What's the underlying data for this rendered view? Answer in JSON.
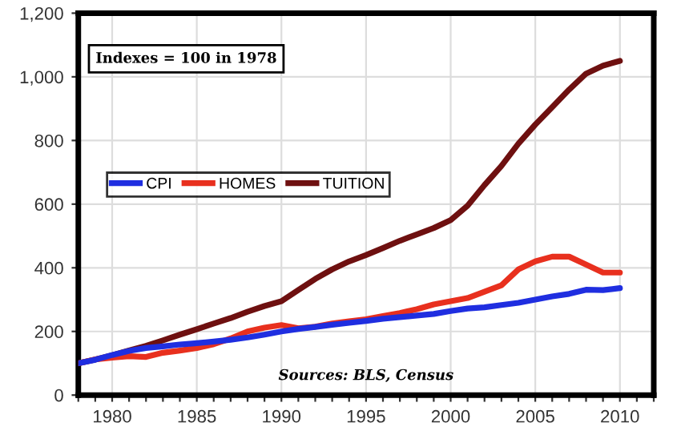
{
  "chart_data": {
    "type": "line",
    "x": [
      1978,
      1979,
      1980,
      1981,
      1982,
      1983,
      1984,
      1985,
      1986,
      1987,
      1988,
      1989,
      1990,
      1991,
      1992,
      1993,
      1994,
      1995,
      1996,
      1997,
      1998,
      1999,
      2000,
      2001,
      2002,
      2003,
      2004,
      2005,
      2006,
      2007,
      2008,
      2009,
      2010
    ],
    "series": [
      {
        "name": "CPI",
        "color": "#1f2ee0",
        "values": [
          100,
          111,
          126,
          139,
          148,
          153,
          159,
          163,
          168,
          174,
          181,
          190,
          200,
          208,
          214,
          221,
          227,
          233,
          240,
          245,
          250,
          255,
          264,
          272,
          276,
          283,
          290,
          300,
          310,
          318,
          331,
          330,
          336
        ]
      },
      {
        "name": "HOMES",
        "color": "#e8301e",
        "values": [
          100,
          112,
          118,
          122,
          120,
          133,
          140,
          148,
          160,
          178,
          200,
          212,
          220,
          210,
          215,
          225,
          232,
          238,
          248,
          258,
          270,
          285,
          295,
          305,
          325,
          345,
          395,
          420,
          435,
          435,
          410,
          385,
          385
        ]
      },
      {
        "name": "TUITION",
        "color": "#6e1010",
        "values": [
          100,
          112,
          125,
          140,
          155,
          172,
          190,
          207,
          225,
          242,
          262,
          280,
          295,
          330,
          365,
          395,
          420,
          440,
          462,
          485,
          505,
          525,
          550,
          595,
          660,
          720,
          790,
          850,
          905,
          960,
          1010,
          1035,
          1050
        ]
      }
    ],
    "xlim": [
      1978,
      2012
    ],
    "xticks": [
      {
        "value": 1978,
        "label": null
      },
      {
        "value": 1979,
        "label": null
      },
      1980,
      {
        "value": 1981,
        "label": null
      },
      {
        "value": 1982,
        "label": null
      },
      {
        "value": 1983,
        "label": null
      },
      {
        "value": 1984,
        "label": null
      },
      1985,
      {
        "value": 1986,
        "label": null
      },
      {
        "value": 1987,
        "label": null
      },
      {
        "value": 1988,
        "label": null
      },
      {
        "value": 1989,
        "label": null
      },
      1990,
      {
        "value": 1991,
        "label": null
      },
      {
        "value": 1992,
        "label": null
      },
      {
        "value": 1993,
        "label": null
      },
      {
        "value": 1994,
        "label": null
      },
      1995,
      {
        "value": 1996,
        "label": null
      },
      {
        "value": 1997,
        "label": null
      },
      {
        "value": 1998,
        "label": null
      },
      {
        "value": 1999,
        "label": null
      },
      2000,
      {
        "value": 2001,
        "label": null
      },
      {
        "value": 2002,
        "label": null
      },
      {
        "value": 2003,
        "label": null
      },
      {
        "value": 2004,
        "label": null
      },
      2005,
      {
        "value": 2006,
        "label": null
      },
      {
        "value": 2007,
        "label": null
      },
      {
        "value": 2008,
        "label": null
      },
      {
        "value": 2009,
        "label": null
      },
      2010,
      {
        "value": 2011,
        "label": null
      },
      {
        "value": 2012,
        "label": null
      }
    ],
    "ylim": [
      0,
      1200
    ],
    "yticks": [
      0,
      200,
      400,
      600,
      800,
      {
        "value": 1000,
        "label": "1,000"
      },
      {
        "value": 1200,
        "label": "1,200"
      }
    ],
    "grid": true,
    "legend": "left",
    "marker": "none",
    "line_style": "solid",
    "annotations": [
      "Indexes = 100 in 1978",
      "Sources: BLS, Census"
    ]
  }
}
